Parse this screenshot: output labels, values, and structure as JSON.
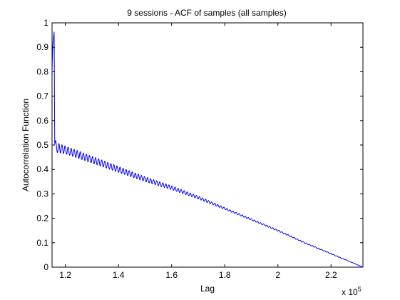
{
  "chart_data": {
    "type": "line",
    "title": "9 sessions - ACF of samples (all samples)",
    "xlabel": "Lag",
    "ylabel": "Autocorrelation Function",
    "x_multiplier": "x 10",
    "x_exponent": "5",
    "xlim": [
      115000,
      232000
    ],
    "ylim": [
      0,
      1
    ],
    "xticks": [
      120000,
      140000,
      160000,
      180000,
      200000,
      220000
    ],
    "xticklabels": [
      "1.2",
      "1.4",
      "1.6",
      "1.8",
      "2",
      "2.2"
    ],
    "yticks": [
      0,
      0.1,
      0.2,
      0.3,
      0.4,
      0.5,
      0.6,
      0.7,
      0.8,
      0.9,
      1
    ],
    "yticklabels": [
      "0",
      "0.1",
      "0.2",
      "0.3",
      "0.4",
      "0.5",
      "0.6",
      "0.7",
      "0.8",
      "0.9",
      "1"
    ],
    "grid": false,
    "line_color": "#0000ff",
    "series": [
      {
        "x": [
          115000,
          115800,
          116000,
          116500,
          120000,
          130000,
          140000,
          150000,
          160000,
          170000,
          180000,
          190000,
          200000,
          210000,
          220000,
          232000
        ],
        "y": [
          0.8,
          1.0,
          0.52,
          0.49,
          0.48,
          0.44,
          0.4,
          0.36,
          0.325,
          0.285,
          0.24,
          0.195,
          0.15,
          0.1,
          0.055,
          0.0
        ],
        "oscillation_amplitude": [
          0.03,
          0.035,
          0.025,
          0.02,
          0.016,
          0.014,
          0.012,
          0.01,
          0.008,
          0.006,
          0.004,
          0.003,
          0.0025,
          0.002,
          0.0015,
          0.0
        ]
      }
    ]
  }
}
